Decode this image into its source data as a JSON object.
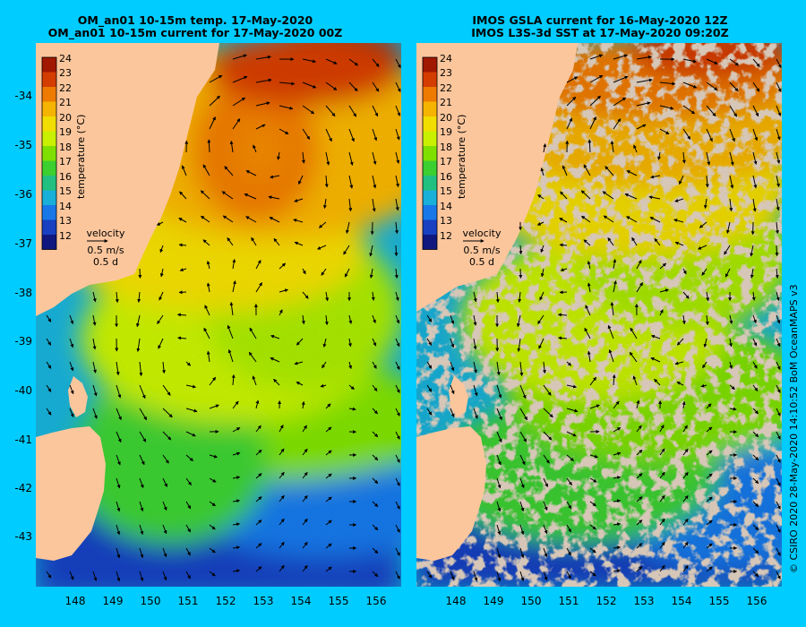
{
  "left_panel": {
    "title_line1": "OM_an01 10-15m temp. 17-May-2020",
    "title_line2": "OM_an01 10-15m current for 17-May-2020 00Z"
  },
  "right_panel": {
    "title_line1": "IMOS GSLA current for 16-May-2020 12Z",
    "title_line2": "IMOS L3S-3d SST at 17-May-2020 09:20Z"
  },
  "colorbar": {
    "label": "temperature (°C)",
    "ticks": [
      "24",
      "23",
      "22",
      "21",
      "20",
      "19",
      "18",
      "17",
      "16",
      "15",
      "14",
      "13",
      "12"
    ],
    "colors": [
      "#a01800",
      "#d43d00",
      "#ee7a00",
      "#f5b400",
      "#f2dd00",
      "#c8f000",
      "#7fe000",
      "#3ccf30",
      "#22c080",
      "#18b0d8",
      "#1878e8",
      "#1840c0",
      "#101880"
    ]
  },
  "velocity_legend": {
    "title": "velocity",
    "speed": "0.5 m/s",
    "time": "0.5 d"
  },
  "axes": {
    "lat_labels": [
      "-34",
      "-35",
      "-36",
      "-37",
      "-38",
      "-39",
      "-40",
      "-41",
      "-42",
      "-43"
    ],
    "lon_labels": [
      "148",
      "149",
      "150",
      "151",
      "152",
      "153",
      "154",
      "155",
      "156"
    ]
  },
  "credit": "© CSIRO 2020  28-May-2020 14:10:52 BoM OceanMAPS v3",
  "colors": {
    "background": "#00ccff",
    "land": "#fcc69c",
    "no_data": "#c8a88c"
  }
}
